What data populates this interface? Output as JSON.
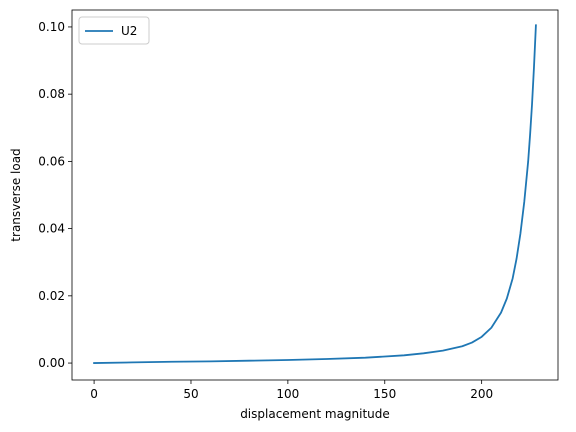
{
  "chart_data": {
    "type": "line",
    "title": "",
    "xlabel": "displacement magnitude",
    "ylabel": "transverse load",
    "xlim": [
      -11.4,
      239.4
    ],
    "ylim": [
      -0.00504,
      0.10504
    ],
    "xticks": [
      0,
      50,
      100,
      150,
      200
    ],
    "xtick_labels": [
      "0",
      "50",
      "100",
      "150",
      "200"
    ],
    "yticks": [
      0.0,
      0.02,
      0.04,
      0.06,
      0.08,
      0.1
    ],
    "ytick_labels": [
      "0.00",
      "0.02",
      "0.04",
      "0.06",
      "0.08",
      "0.10"
    ],
    "grid": false,
    "legend": {
      "placement": "upper-left",
      "entries": [
        "U2"
      ]
    },
    "series": [
      {
        "name": "U2",
        "color": "#1f77b4",
        "x": [
          0,
          20,
          40,
          60,
          80,
          100,
          120,
          140,
          160,
          170,
          180,
          190,
          195,
          200,
          205,
          210,
          213,
          216,
          218,
          220,
          222,
          224,
          225,
          226,
          227,
          228
        ],
        "y": [
          0.0,
          0.0002,
          0.0004,
          0.0005,
          0.0007,
          0.0009,
          0.0012,
          0.0016,
          0.0023,
          0.0029,
          0.0037,
          0.005,
          0.0061,
          0.0078,
          0.0105,
          0.015,
          0.0192,
          0.0252,
          0.031,
          0.0385,
          0.048,
          0.06,
          0.068,
          0.077,
          0.088,
          0.1005
        ]
      }
    ]
  }
}
